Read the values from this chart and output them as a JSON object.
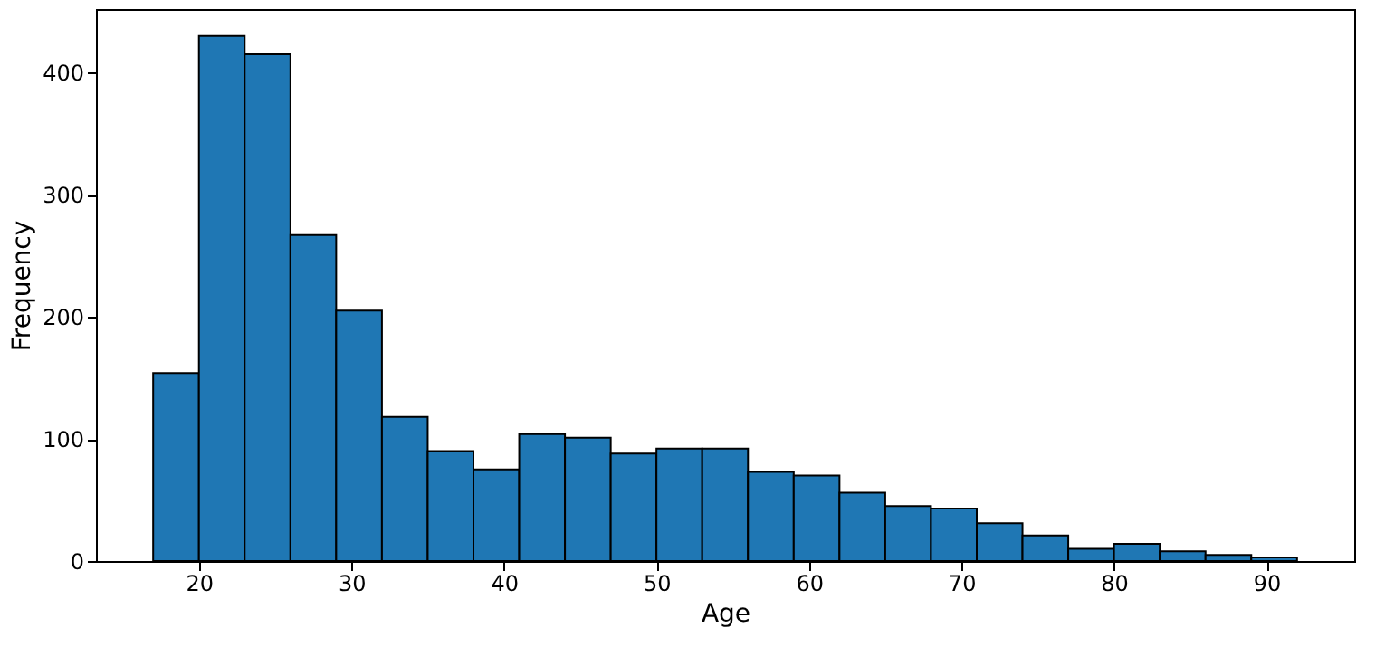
{
  "chart_data": {
    "type": "histogram",
    "xlabel": "Age",
    "ylabel": "Frequency",
    "color": "#1f77b4",
    "bins": [
      17,
      20,
      23,
      26,
      29,
      32,
      35,
      38,
      41,
      44,
      47,
      50,
      53,
      56,
      59,
      62,
      65,
      68,
      71,
      74,
      77,
      80,
      83,
      86,
      89,
      92
    ],
    "values": [
      154,
      430,
      415,
      267,
      205,
      118,
      90,
      75,
      104,
      101,
      88,
      92,
      92,
      73,
      70,
      56,
      45,
      43,
      31,
      21,
      10,
      14,
      8,
      5,
      3
    ],
    "xlim": [
      13.25,
      95.75
    ],
    "ylim": [
      0,
      452
    ],
    "xticks": [
      20,
      30,
      40,
      50,
      60,
      70,
      80,
      90
    ],
    "yticks": [
      0,
      100,
      200,
      300,
      400
    ],
    "grid": false
  }
}
